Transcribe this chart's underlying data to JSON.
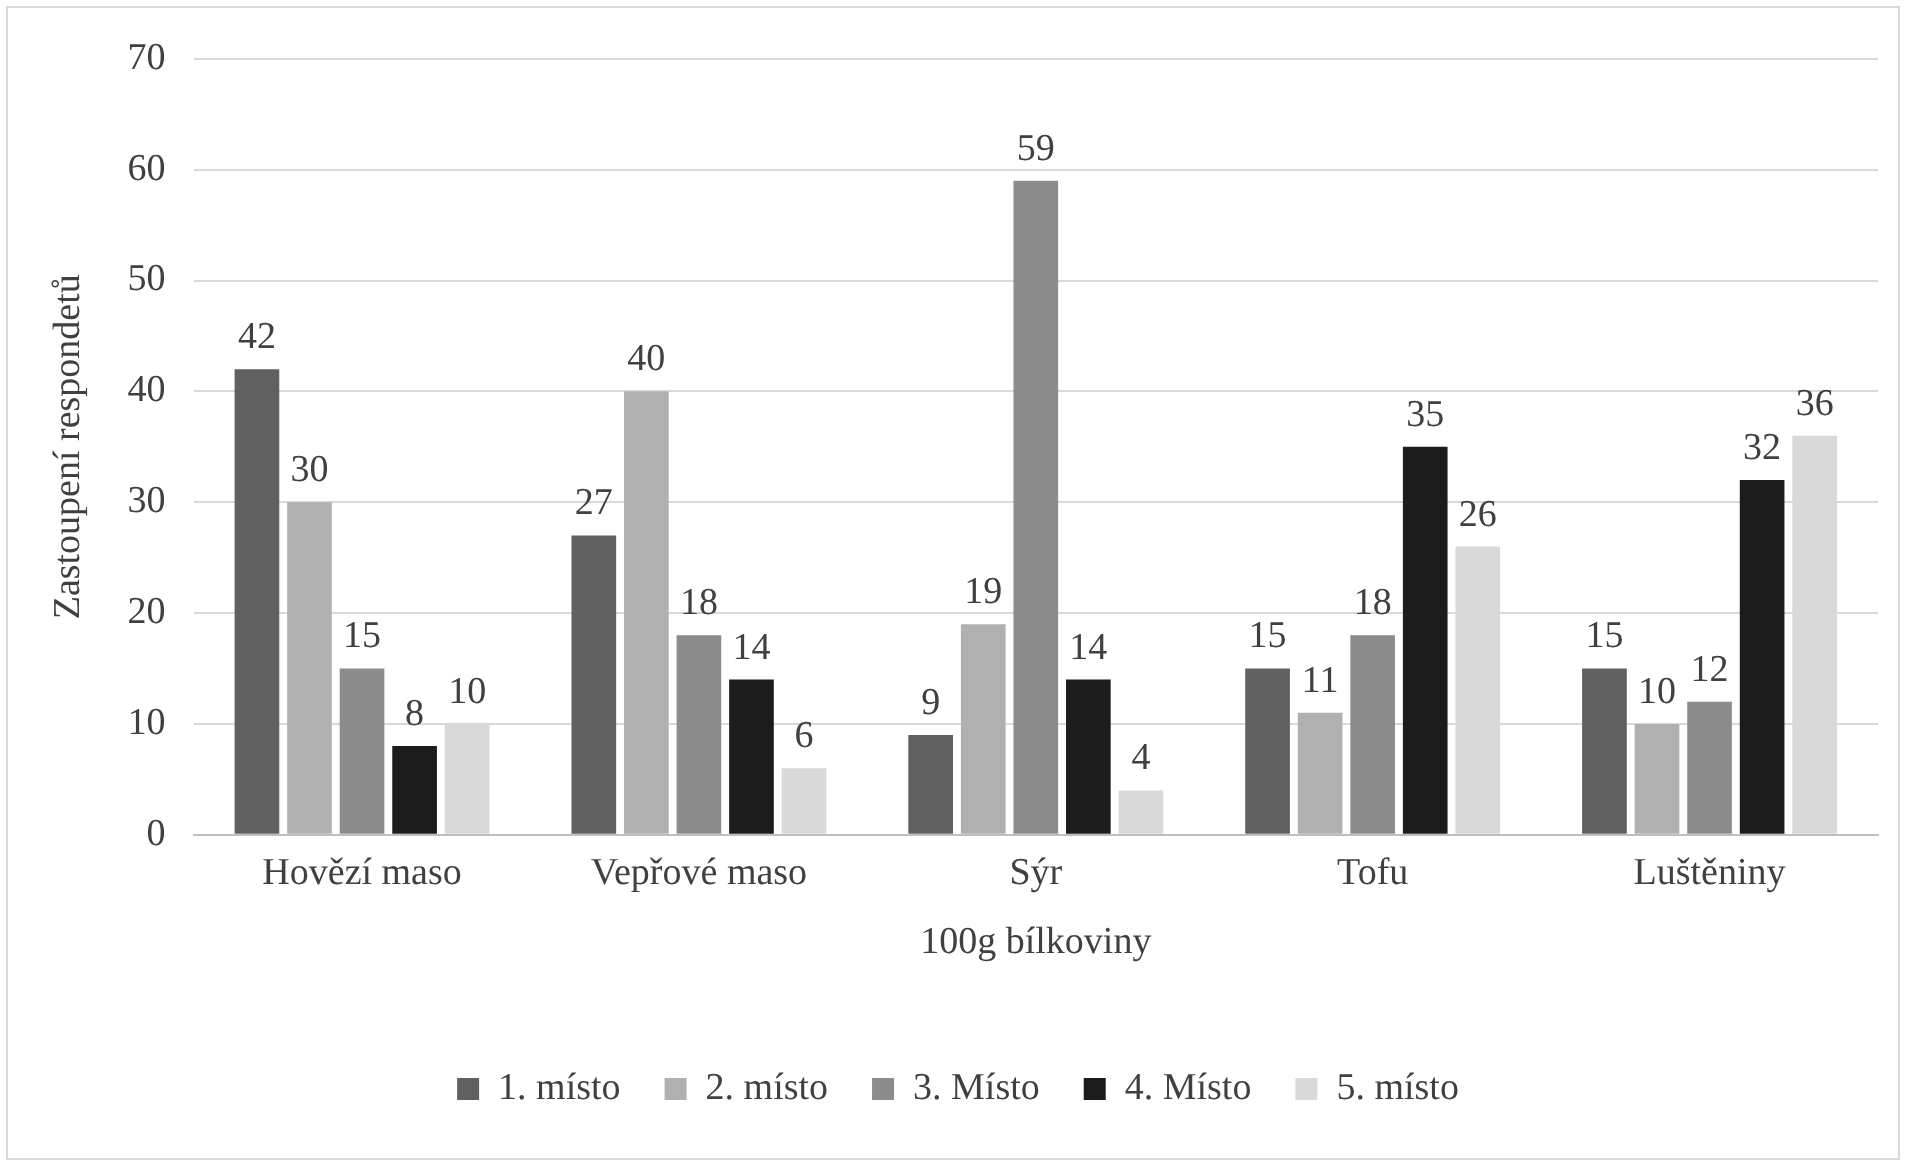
{
  "chart_data": {
    "type": "bar",
    "xlabel": "100g bílkoviny",
    "ylabel": "Zastoupení respondetů",
    "categories": [
      "Hovězí maso",
      "Vepřové maso",
      "Sýr",
      "Tofu",
      "Luštěniny"
    ],
    "series": [
      {
        "name": "1. místo",
        "color": "#606060",
        "values": [
          42,
          27,
          9,
          15,
          15
        ]
      },
      {
        "name": "2. místo",
        "color": "#b0b0b0",
        "values": [
          30,
          40,
          19,
          11,
          10
        ]
      },
      {
        "name": "3. Místo",
        "color": "#8c8c8c",
        "values": [
          15,
          18,
          59,
          18,
          12
        ]
      },
      {
        "name": "4. Místo",
        "color": "#1c1c1c",
        "values": [
          8,
          14,
          14,
          35,
          32
        ]
      },
      {
        "name": "5. místo",
        "color": "#d9d9d9",
        "values": [
          10,
          6,
          4,
          26,
          36
        ]
      }
    ],
    "ylim": [
      0,
      70
    ],
    "yticks": [
      0,
      10,
      20,
      30,
      40,
      50,
      60,
      70
    ],
    "grid": "y",
    "legend": "bottom",
    "data_labels": true
  }
}
